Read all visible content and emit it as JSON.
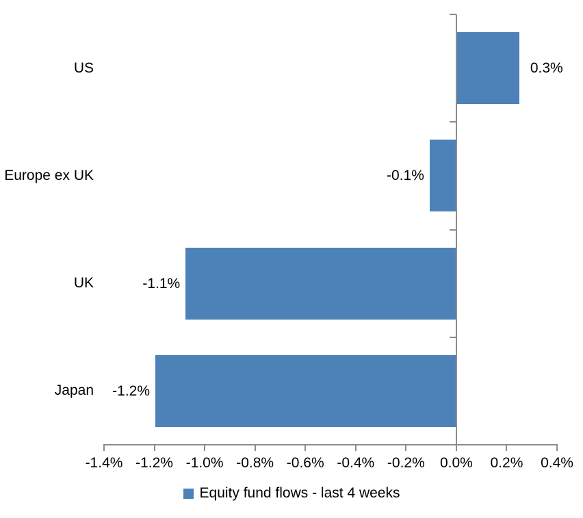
{
  "chart_data": {
    "type": "bar",
    "orientation": "horizontal",
    "categories": [
      "US",
      "Europe ex UK",
      "UK",
      "Japan"
    ],
    "values": [
      0.3,
      -0.1,
      -1.1,
      -1.2
    ],
    "value_labels": [
      "0.3%",
      "-0.1%",
      "-1.1%",
      "-1.2%"
    ],
    "visual_values": [
      0.25,
      -0.106,
      -1.076,
      -1.196
    ],
    "series_name": "Equity fund flows - last 4 weeks",
    "x_ticks": [
      "-1.4%",
      "-1.2%",
      "-1.0%",
      "-0.8%",
      "-0.6%",
      "-0.4%",
      "-0.2%",
      "0.0%",
      "0.2%",
      "0.4%"
    ],
    "x_tick_values": [
      -1.4,
      -1.2,
      -1.0,
      -0.8,
      -0.6,
      -0.4,
      -0.2,
      0.0,
      0.2,
      0.4
    ],
    "xlim": [
      -1.4,
      0.4
    ],
    "grid": false,
    "legend_position": "bottom",
    "bar_color": "#4d82b8",
    "axis_color": "#8c8c8c",
    "text_color": "#000000"
  }
}
